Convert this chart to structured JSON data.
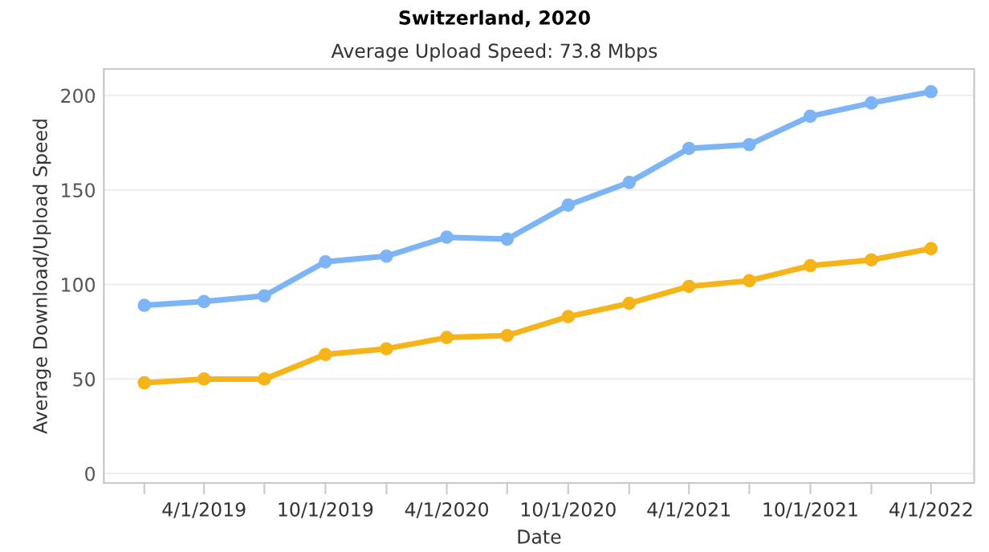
{
  "chart_data": {
    "type": "line",
    "title": "Switzerland, 2020",
    "subtitle": "Average Upload Speed: 73.8 Mbps",
    "xlabel": "Date",
    "ylabel": "Average Download/Upload Speed",
    "x": [
      "2019-01-01",
      "2019-04-01",
      "2019-07-01",
      "2019-10-01",
      "2020-01-01",
      "2020-04-01",
      "2020-07-01",
      "2020-10-01",
      "2021-01-01",
      "2021-04-01",
      "2021-07-01",
      "2021-10-01",
      "2022-01-01",
      "2022-04-01"
    ],
    "series": [
      {
        "color": "#7db4f5",
        "values": [
          89,
          91,
          94,
          112,
          115,
          125,
          124,
          142,
          154,
          172,
          174,
          189,
          196,
          202
        ]
      },
      {
        "color": "#f5b41a",
        "values": [
          48,
          50,
          50,
          63,
          66,
          72,
          73,
          83,
          90,
          99,
          102,
          110,
          113,
          119
        ]
      }
    ],
    "xlim": [
      "2018-11-01",
      "2022-06-05"
    ],
    "ylim": [
      -5,
      214
    ],
    "yticks": [
      0,
      50,
      100,
      150,
      200
    ],
    "xticks": [
      {
        "value": "2019-01-01",
        "label": null
      },
      {
        "value": "2019-04-01",
        "label": "4/1/2019"
      },
      {
        "value": "2019-07-01",
        "label": null
      },
      {
        "value": "2019-10-01",
        "label": "10/1/2019"
      },
      {
        "value": "2020-01-01",
        "label": null
      },
      {
        "value": "2020-04-01",
        "label": "4/1/2020"
      },
      {
        "value": "2020-07-01",
        "label": null
      },
      {
        "value": "2020-10-01",
        "label": "10/1/2020"
      },
      {
        "value": "2021-01-01",
        "label": null
      },
      {
        "value": "2021-04-01",
        "label": "4/1/2021"
      },
      {
        "value": "2021-07-01",
        "label": null
      },
      {
        "value": "2021-10-01",
        "label": "10/1/2021"
      },
      {
        "value": "2022-01-01",
        "label": null
      },
      {
        "value": "2022-04-01",
        "label": "4/1/2022"
      }
    ],
    "grid": "y",
    "marker": "circle",
    "line_style": "solid"
  }
}
